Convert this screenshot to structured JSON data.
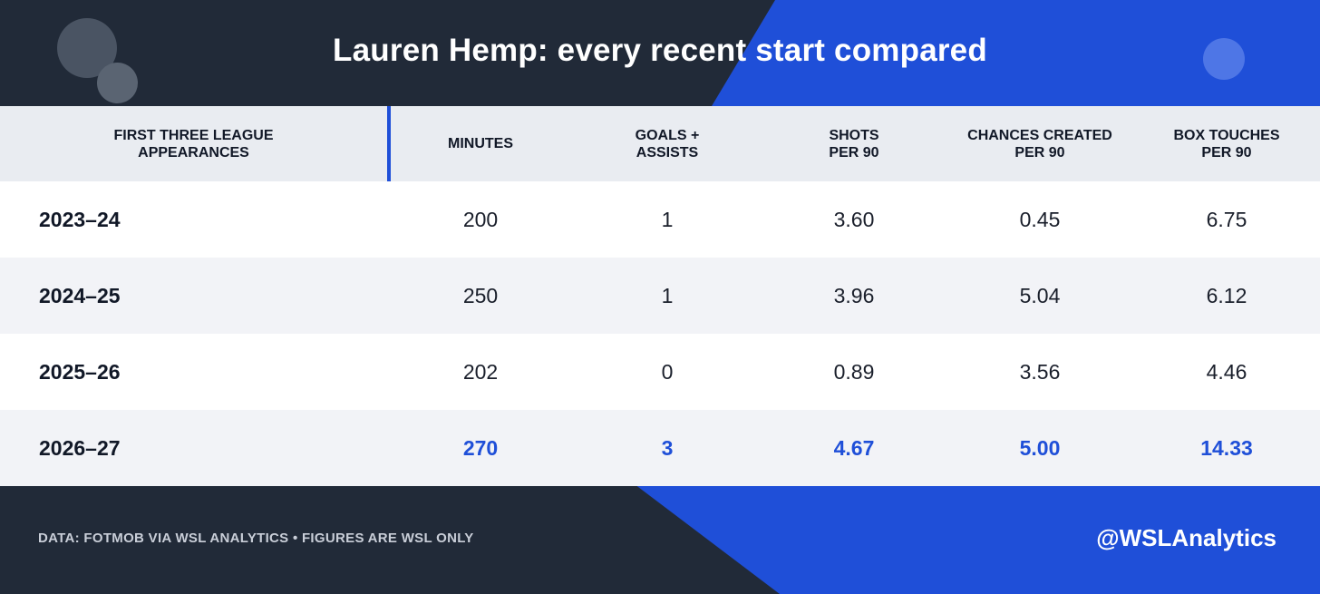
{
  "title": "Lauren Hemp: every recent start compared",
  "colors": {
    "dark": "#212a38",
    "blue": "#1f4fd8",
    "header_bg": "#e9ecf1"
  },
  "chart_data": {
    "type": "table",
    "title": "Lauren Hemp: every recent start compared",
    "columns": [
      "FIRST THREE LEAGUE APPEARANCES",
      "MINUTES",
      "GOALS + ASSISTS",
      "SHOTS PER 90",
      "CHANCES CREATED PER 90",
      "BOX TOUCHES PER 90"
    ],
    "rows": [
      {
        "season": "2023–24",
        "values": [
          "200",
          "1",
          "3.60",
          "0.45",
          "6.75"
        ],
        "highlight": false
      },
      {
        "season": "2024–25",
        "values": [
          "250",
          "1",
          "3.96",
          "5.04",
          "6.12"
        ],
        "highlight": false
      },
      {
        "season": "2025–26",
        "values": [
          "202",
          "0",
          "0.89",
          "3.56",
          "4.46"
        ],
        "highlight": false
      },
      {
        "season": "2026–27",
        "values": [
          "270",
          "3",
          "4.67",
          "5.00",
          "14.33"
        ],
        "highlight": true
      }
    ]
  },
  "footer": {
    "source": "DATA: FOTMOB VIA WSL ANALYTICS  •  FIGURES ARE WSL ONLY",
    "handle": "@WSLAnalytics"
  }
}
